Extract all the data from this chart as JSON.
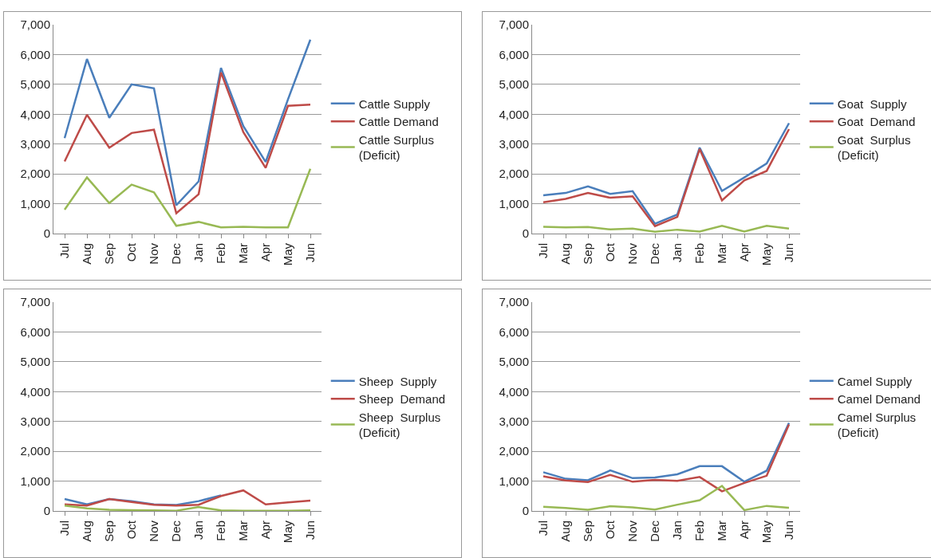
{
  "chart_data": [
    {
      "type": "line",
      "categories": [
        "Jul",
        "Aug",
        "Sep",
        "Oct",
        "Nov",
        "Dec",
        "Jan",
        "Feb",
        "Mar",
        "Apr",
        "May",
        "Jun"
      ],
      "ylim": [
        0,
        7000
      ],
      "yticks": [
        {
          "value": 0,
          "label": "0"
        },
        {
          "value": 1000,
          "label": "1,000"
        },
        {
          "value": 2000,
          "label": "2,000"
        },
        {
          "value": 3000,
          "label": "3,000"
        },
        {
          "value": 4000,
          "label": "4,000"
        },
        {
          "value": 5000,
          "label": "5,000"
        },
        {
          "value": 6000,
          "label": "6,000"
        },
        {
          "value": 7000,
          "label": "7,000"
        }
      ],
      "grid": "y",
      "legend": "right",
      "series": [
        {
          "name": "Cattle Supply",
          "color": "#4a7ebb",
          "values": [
            3200,
            5850,
            3880,
            5000,
            4870,
            950,
            1750,
            5550,
            3600,
            2400,
            4500,
            6500
          ]
        },
        {
          "name": "Cattle Demand",
          "color": "#be4b48",
          "values": [
            2420,
            3980,
            2880,
            3370,
            3480,
            680,
            1320,
            5400,
            3400,
            2200,
            4280,
            4320
          ]
        },
        {
          "name": "Cattle Surplus\n(Deficit)",
          "color": "#98b954",
          "values": [
            800,
            1880,
            1020,
            1640,
            1380,
            260,
            390,
            210,
            230,
            210,
            210,
            2170
          ]
        }
      ]
    },
    {
      "type": "line",
      "categories": [
        "Jul",
        "Aug",
        "Sep",
        "Oct",
        "Nov",
        "Dec",
        "Jan",
        "Feb",
        "Mar",
        "Apr",
        "May",
        "Jun"
      ],
      "ylim": [
        0,
        7000
      ],
      "yticks": [
        {
          "value": 0,
          "label": "0"
        },
        {
          "value": 1000,
          "label": "1,000"
        },
        {
          "value": 2000,
          "label": "2,000"
        },
        {
          "value": 3000,
          "label": "3,000"
        },
        {
          "value": 4000,
          "label": "4,000"
        },
        {
          "value": 5000,
          "label": "5,000"
        },
        {
          "value": 6000,
          "label": "6,000"
        },
        {
          "value": 7000,
          "label": "7,000"
        }
      ],
      "grid": "y",
      "legend": "right",
      "series": [
        {
          "name": "Goat  Supply",
          "color": "#4a7ebb",
          "values": [
            1280,
            1360,
            1580,
            1330,
            1420,
            330,
            640,
            2880,
            1430,
            1880,
            2350,
            3700
          ]
        },
        {
          "name": "Goat  Demand",
          "color": "#be4b48",
          "values": [
            1050,
            1160,
            1360,
            1200,
            1250,
            250,
            560,
            2830,
            1110,
            1780,
            2100,
            3500
          ]
        },
        {
          "name": "Goat  Surplus\n(Deficit)",
          "color": "#98b954",
          "values": [
            230,
            210,
            220,
            140,
            170,
            60,
            130,
            70,
            260,
            70,
            260,
            170
          ]
        }
      ]
    },
    {
      "type": "line",
      "categories": [
        "Jul",
        "Aug",
        "Sep",
        "Oct",
        "Nov",
        "Dec",
        "Jan",
        "Feb",
        "Mar",
        "Apr",
        "May",
        "Jun"
      ],
      "ylim": [
        0,
        7000
      ],
      "yticks": [
        {
          "value": 0,
          "label": "0"
        },
        {
          "value": 1000,
          "label": "1,000"
        },
        {
          "value": 2000,
          "label": "2,000"
        },
        {
          "value": 3000,
          "label": "3,000"
        },
        {
          "value": 4000,
          "label": "4,000"
        },
        {
          "value": 5000,
          "label": "5,000"
        },
        {
          "value": 6000,
          "label": "6,000"
        },
        {
          "value": 7000,
          "label": "7,000"
        }
      ],
      "grid": "y",
      "legend": "right",
      "series": [
        {
          "name": "Sheep  Supply",
          "color": "#4a7ebb",
          "values": [
            400,
            220,
            400,
            330,
            220,
            200,
            330,
            520,
            null,
            null,
            null,
            null
          ]
        },
        {
          "name": "Sheep  Demand",
          "color": "#be4b48",
          "values": [
            220,
            180,
            400,
            300,
            210,
            180,
            210,
            500,
            690,
            220,
            290,
            350
          ]
        },
        {
          "name": "Sheep  Surplus\n(Deficit)",
          "color": "#98b954",
          "values": [
            180,
            90,
            40,
            30,
            20,
            10,
            130,
            20,
            10,
            10,
            10,
            20
          ]
        }
      ]
    },
    {
      "type": "line",
      "categories": [
        "Jul",
        "Aug",
        "Sep",
        "Oct",
        "Nov",
        "Dec",
        "Jan",
        "Feb",
        "Mar",
        "Apr",
        "May",
        "Jun"
      ],
      "ylim": [
        0,
        7000
      ],
      "yticks": [
        {
          "value": 0,
          "label": "0"
        },
        {
          "value": 1000,
          "label": "1,000"
        },
        {
          "value": 2000,
          "label": "2,000"
        },
        {
          "value": 3000,
          "label": "3,000"
        },
        {
          "value": 4000,
          "label": "4,000"
        },
        {
          "value": 5000,
          "label": "5,000"
        },
        {
          "value": 6000,
          "label": "6,000"
        },
        {
          "value": 7000,
          "label": "7,000"
        }
      ],
      "grid": "y",
      "legend": "right",
      "series": [
        {
          "name": "Camel Supply",
          "color": "#4a7ebb",
          "values": [
            1300,
            1080,
            1030,
            1360,
            1100,
            1120,
            1230,
            1500,
            1500,
            980,
            1350,
            2950
          ]
        },
        {
          "name": "Camel Demand",
          "color": "#be4b48",
          "values": [
            1160,
            1020,
            970,
            1210,
            980,
            1040,
            1010,
            1140,
            660,
            940,
            1180,
            2900
          ]
        },
        {
          "name": "Camel Surplus\n(Deficit)",
          "color": "#98b954",
          "values": [
            140,
            100,
            40,
            160,
            120,
            50,
            210,
            360,
            840,
            30,
            170,
            110
          ]
        }
      ]
    }
  ]
}
